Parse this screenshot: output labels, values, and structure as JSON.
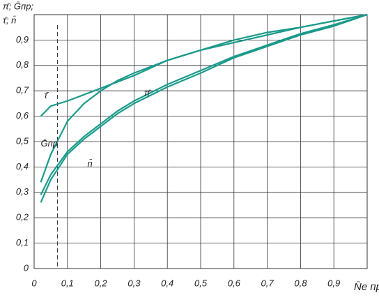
{
  "chart_data": {
    "type": "line",
    "ylabel": [
      "π̄; Ḡпр;",
      "τ̄; n̄"
    ],
    "xlabel": "N̄e пр",
    "xlim": [
      0,
      1
    ],
    "ylim": [
      0,
      1
    ],
    "xticks": [
      0,
      {
        "value": 0.1,
        "label": "0,1"
      },
      {
        "value": 0.2,
        "label": "0,2"
      },
      {
        "value": 0.3,
        "label": "0,3"
      },
      {
        "value": 0.4,
        "label": "0,4"
      },
      {
        "value": 0.5,
        "label": "0,5"
      },
      {
        "value": 0.6,
        "label": "0,6"
      },
      {
        "value": 0.7,
        "label": "0,7"
      },
      {
        "value": 0.8,
        "label": "0,8"
      },
      {
        "value": 0.9,
        "label": "0,9"
      }
    ],
    "yticks": [
      0,
      {
        "value": 0.1,
        "label": "0,1"
      },
      {
        "value": 0.2,
        "label": "0,2"
      },
      {
        "value": 0.3,
        "label": "0,3"
      },
      {
        "value": 0.4,
        "label": "0,4"
      },
      {
        "value": 0.5,
        "label": "0,5"
      },
      {
        "value": 0.6,
        "label": "0,6"
      },
      {
        "value": 0.7,
        "label": "0,7"
      },
      {
        "value": 0.8,
        "label": "0,8"
      },
      {
        "value": 0.9,
        "label": "0,9"
      }
    ],
    "grid": true,
    "reference_x": 0.07,
    "x": [
      0.02,
      0.05,
      0.1,
      0.15,
      0.2,
      0.25,
      0.3,
      0.4,
      0.5,
      0.6,
      0.7,
      0.8,
      0.9,
      1.0
    ],
    "series": [
      {
        "name": "τ̄",
        "color": "#1a9a8a",
        "values": [
          0.6,
          0.64,
          0.66,
          0.685,
          0.71,
          0.735,
          0.76,
          0.82,
          0.86,
          0.9,
          0.93,
          0.95,
          0.975,
          1.0
        ]
      },
      {
        "name": "Ḡпр",
        "color": "#1a9a8a",
        "values": [
          0.34,
          0.45,
          0.58,
          0.65,
          0.7,
          0.74,
          0.77,
          0.82,
          0.86,
          0.89,
          0.92,
          0.95,
          0.975,
          1.0
        ]
      },
      {
        "name": "π̄",
        "color": "#1a9a8a",
        "values": [
          0.29,
          0.37,
          0.46,
          0.52,
          0.57,
          0.62,
          0.66,
          0.725,
          0.78,
          0.835,
          0.88,
          0.925,
          0.96,
          1.0
        ]
      },
      {
        "name": "n̄",
        "color": "#1a9a8a",
        "values": [
          0.26,
          0.35,
          0.45,
          0.51,
          0.56,
          0.61,
          0.65,
          0.715,
          0.77,
          0.83,
          0.875,
          0.92,
          0.955,
          1.0
        ]
      }
    ]
  }
}
